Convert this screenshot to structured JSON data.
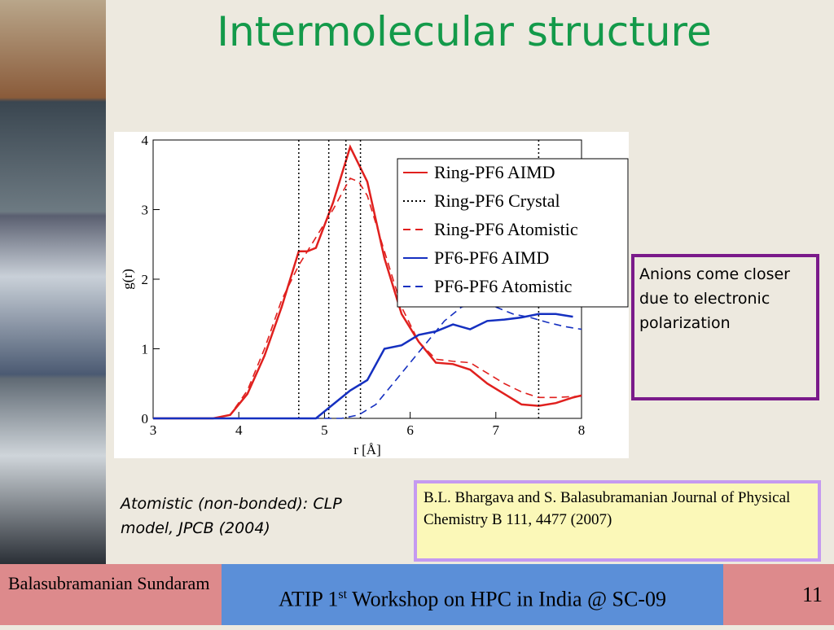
{
  "title": "Intermolecular structure",
  "note": "Anions come closer due to electronic polarization",
  "caption": "Atomistic (non-bonded): CLP model, JPCB (2004)",
  "citation": "B.L. Bhargava and S. Balasubramanian Journal of Physical Chemistry B 111, 4477 (2007)",
  "footer": {
    "author": "Balasubramanian Sundaram",
    "event_start": "ATIP 1",
    "event_sup": "st",
    "event_end": " Workshop on HPC in India @ SC-09",
    "page": "11"
  },
  "chart_data": {
    "type": "line",
    "xlabel": "r [Å]",
    "ylabel": "g(r)",
    "xlim": [
      3,
      8
    ],
    "ylim": [
      0,
      4
    ],
    "xticks": [
      3,
      4,
      5,
      6,
      7,
      8
    ],
    "yticks": [
      0,
      1,
      2,
      3,
      4
    ],
    "series": [
      {
        "name": "Ring-PF6 AIMD",
        "color": "#e0201e",
        "style": "solid",
        "x": [
          3,
          3.7,
          3.9,
          4.1,
          4.3,
          4.5,
          4.7,
          4.8,
          4.9,
          5.1,
          5.3,
          5.5,
          5.7,
          5.9,
          6.1,
          6.3,
          6.5,
          6.7,
          6.9,
          7.1,
          7.3,
          7.5,
          7.7,
          7.9,
          8
        ],
        "values": [
          0,
          0,
          0.05,
          0.35,
          0.9,
          1.6,
          2.4,
          2.4,
          2.45,
          3.1,
          3.9,
          3.4,
          2.3,
          1.5,
          1.1,
          0.8,
          0.78,
          0.7,
          0.5,
          0.35,
          0.2,
          0.18,
          0.22,
          0.3,
          0.33
        ]
      },
      {
        "name": "Ring-PF6 Crystal",
        "color": "#000000",
        "style": "vlines",
        "x": [
          4.7,
          5.05,
          5.25,
          5.42,
          7.5
        ]
      },
      {
        "name": "Ring-PF6 Atomistic",
        "color": "#e0201e",
        "style": "dashed",
        "x": [
          3,
          3.7,
          3.9,
          4.1,
          4.3,
          4.5,
          4.7,
          4.9,
          5.1,
          5.3,
          5.4,
          5.5,
          5.7,
          5.9,
          6.1,
          6.3,
          6.5,
          6.7,
          6.9,
          7.1,
          7.3,
          7.5,
          7.7,
          8
        ],
        "values": [
          0,
          0,
          0.05,
          0.4,
          1.0,
          1.7,
          2.2,
          2.6,
          3.0,
          3.45,
          3.4,
          3.2,
          2.4,
          1.6,
          1.1,
          0.85,
          0.82,
          0.8,
          0.65,
          0.5,
          0.38,
          0.3,
          0.3,
          0.32
        ]
      },
      {
        "name": "PF6-PF6 AIMD",
        "color": "#1530c0",
        "style": "solid",
        "x": [
          3,
          4.9,
          5.1,
          5.3,
          5.5,
          5.7,
          5.9,
          6.1,
          6.3,
          6.5,
          6.7,
          6.9,
          7.1,
          7.3,
          7.5,
          7.7,
          7.9
        ],
        "values": [
          0,
          0,
          0.2,
          0.4,
          0.55,
          1.0,
          1.05,
          1.2,
          1.25,
          1.35,
          1.28,
          1.4,
          1.42,
          1.45,
          1.5,
          1.5,
          1.46
        ]
      },
      {
        "name": "PF6-PF6 Atomistic",
        "color": "#1530c0",
        "style": "dashed",
        "x": [
          3,
          5.2,
          5.4,
          5.6,
          5.8,
          6.0,
          6.2,
          6.4,
          6.6,
          6.8,
          7.0,
          7.2,
          7.4,
          7.6,
          7.8,
          8
        ],
        "values": [
          0,
          0,
          0.05,
          0.2,
          0.5,
          0.8,
          1.1,
          1.4,
          1.6,
          1.65,
          1.6,
          1.5,
          1.45,
          1.38,
          1.32,
          1.28
        ]
      }
    ]
  }
}
